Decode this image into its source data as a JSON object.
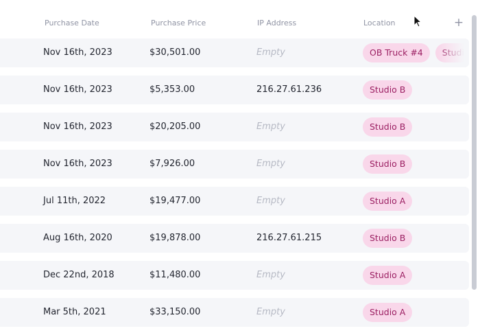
{
  "columns": {
    "purchase_date": "Purchase Date",
    "purchase_price": "Purchase Price",
    "ip_address": "IP Address",
    "location": "Location",
    "add_column_icon": "+"
  },
  "empty_placeholder": "Empty",
  "rows": [
    {
      "date": "Nov 16th, 2023",
      "price": "$30,501.00",
      "ip": "",
      "locations": [
        "OB Truck #4",
        "Studio B"
      ]
    },
    {
      "date": "Nov 16th, 2023",
      "price": "$5,353.00",
      "ip": "216.27.61.236",
      "locations": [
        "Studio B"
      ]
    },
    {
      "date": "Nov 16th, 2023",
      "price": "$20,205.00",
      "ip": "",
      "locations": [
        "Studio B"
      ]
    },
    {
      "date": "Nov 16th, 2023",
      "price": "$7,926.00",
      "ip": "",
      "locations": [
        "Studio B"
      ]
    },
    {
      "date": "Jul 11th, 2022",
      "price": "$19,477.00",
      "ip": "",
      "locations": [
        "Studio A"
      ]
    },
    {
      "date": "Aug 16th, 2020",
      "price": "$19,878.00",
      "ip": "216.27.61.215",
      "locations": [
        "Studio B"
      ]
    },
    {
      "date": "Dec 22nd, 2018",
      "price": "$11,480.00",
      "ip": "",
      "locations": [
        "Studio A"
      ]
    },
    {
      "date": "Mar 5th, 2021",
      "price": "$33,150.00",
      "ip": "",
      "locations": [
        "Studio A"
      ]
    }
  ],
  "colors": {
    "row_bg": "#f5f6f9",
    "tag_bg": "#f9d7ea",
    "tag_text": "#9b1f62",
    "header_text": "#8f93a3",
    "empty_text": "#b6b9c4"
  }
}
